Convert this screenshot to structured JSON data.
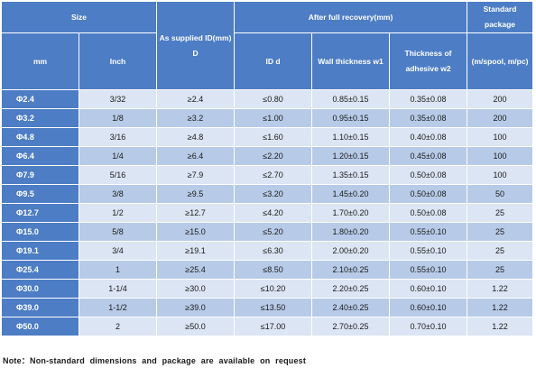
{
  "table": {
    "headers": {
      "size": "Size",
      "as_supplied": "As supplied ID(mm) D",
      "after_recovery": "After full recovery(mm)",
      "standard_package": "Standard package",
      "mm": "mm",
      "inch": "Inch",
      "id_d": "ID d",
      "wall_thickness": "Wall thickness w1",
      "adhesive_thickness": "Thickness of adhesive w2",
      "package_unit": "(m/spool, m/pc)"
    },
    "rows": [
      {
        "mm": "Φ2.4",
        "inch": "3/32",
        "supplied": "≥2.4",
        "id": "≤0.80",
        "wall": "0.85±0.15",
        "adhesive": "0.35±0.08",
        "package": "200"
      },
      {
        "mm": "Φ3.2",
        "inch": "1/8",
        "supplied": "≥3.2",
        "id": "≤1.00",
        "wall": "0.95±0.15",
        "adhesive": "0.35±0.08",
        "package": "200"
      },
      {
        "mm": "Φ4.8",
        "inch": "3/16",
        "supplied": "≥4.8",
        "id": "≤1.60",
        "wall": "1.10±0.15",
        "adhesive": "0.40±0.08",
        "package": "100"
      },
      {
        "mm": "Φ6.4",
        "inch": "1/4",
        "supplied": "≥6.4",
        "id": "≤2.20",
        "wall": "1.20±0.15",
        "adhesive": "0.45±0.08",
        "package": "100"
      },
      {
        "mm": "Φ7.9",
        "inch": "5/16",
        "supplied": "≥7.9",
        "id": "≤2.70",
        "wall": "1.35±0.15",
        "adhesive": "0.50±0.08",
        "package": "100"
      },
      {
        "mm": "Φ9.5",
        "inch": "3/8",
        "supplied": "≥9.5",
        "id": "≤3.20",
        "wall": "1.45±0.20",
        "adhesive": "0.50±0.08",
        "package": "50"
      },
      {
        "mm": "Φ12.7",
        "inch": "1/2",
        "supplied": "≥12.7",
        "id": "≤4.20",
        "wall": "1.70±0.20",
        "adhesive": "0.50±0.08",
        "package": "25"
      },
      {
        "mm": "Φ15.0",
        "inch": "5/8",
        "supplied": "≥15.0",
        "id": "≤5.20",
        "wall": "1.80±0.20",
        "adhesive": "0.55±0.10",
        "package": "25"
      },
      {
        "mm": "Φ19.1",
        "inch": "3/4",
        "supplied": "≥19.1",
        "id": "≤6.30",
        "wall": "2.00±0.20",
        "adhesive": "0.55±0.10",
        "package": "25"
      },
      {
        "mm": "Φ25.4",
        "inch": "1",
        "supplied": "≥25.4",
        "id": "≤8.50",
        "wall": "2.10±0.25",
        "adhesive": "0.55±0.10",
        "package": "25"
      },
      {
        "mm": "Φ30.0",
        "inch": "1-1/4",
        "supplied": "≥30.0",
        "id": "≤10.20",
        "wall": "2.20±0.25",
        "adhesive": "0.60±0.10",
        "package": "1.22"
      },
      {
        "mm": "Φ39.0",
        "inch": "1-1/2",
        "supplied": "≥39.0",
        "id": "≤13.50",
        "wall": "2.40±0.25",
        "adhesive": "0.60±0.10",
        "package": "1.22"
      },
      {
        "mm": "Φ50.0",
        "inch": "2",
        "supplied": "≥50.0",
        "id": "≤17.00",
        "wall": "2.70±0.25",
        "adhesive": "0.70±0.10",
        "package": "1.22"
      }
    ]
  },
  "note": "Note：Non-standard dimensions and package are available on request",
  "colors": {
    "header_blue": "#4d7dc4",
    "row_light": "#dbe5f3",
    "row_mid": "#b7cbe8",
    "text_dark": "#1a1a1a"
  }
}
